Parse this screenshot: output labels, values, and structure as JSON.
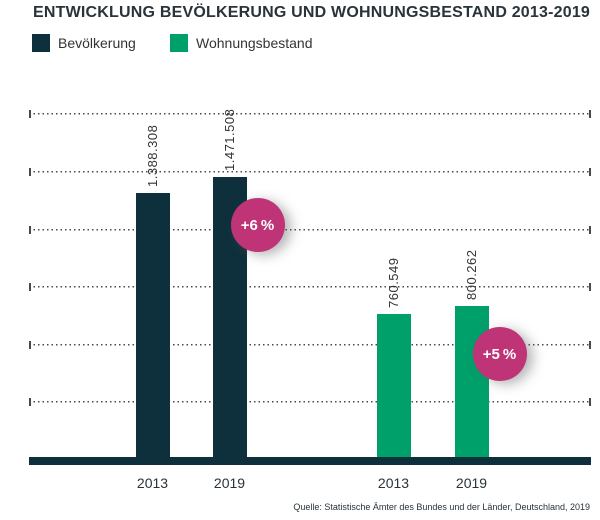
{
  "title": "ENTWICKLUNG BEVÖLKERUNG UND WOHNUNGSBESTAND 2013-2019",
  "legend": [
    {
      "label": "Bevölkerung",
      "color": "#0d303c"
    },
    {
      "label": "Wohnungsbestand",
      "color": "#00a06b"
    }
  ],
  "source": "Quelle: Statistische Ämter des Bundes und der Länder, Deutschland, 2019",
  "colors": {
    "population": "#0d303c",
    "housing": "#00a06b",
    "badge": "#bf3377",
    "axis": "#0d303c",
    "gridline": "#4a4a4a",
    "title_text": "#28333a",
    "value_text": "#333333"
  },
  "chart_data": {
    "type": "bar",
    "title": "ENTWICKLUNG BEVÖLKERUNG UND WOHNUNGSBESTAND 2013-2019",
    "xlabel": "",
    "ylabel": "",
    "ylim": [
      0,
      1875000
    ],
    "grid": "dotted-horizontal",
    "gridline_values": [
      300000,
      600000,
      900000,
      1200000,
      1500000,
      1800000
    ],
    "legend_position": "top-left",
    "categories": [
      "2013",
      "2019",
      "2013",
      "2019"
    ],
    "series": [
      {
        "name": "Bevölkerung",
        "color": "#0d303c",
        "points": [
          {
            "year": "2013",
            "value": 1388308,
            "value_label": "1.388.308"
          },
          {
            "year": "2019",
            "value": 1471508,
            "value_label": "1.471.508",
            "badge": "+6 %"
          }
        ]
      },
      {
        "name": "Wohnungsbestand",
        "color": "#00a06b",
        "points": [
          {
            "year": "2013",
            "value": 760549,
            "value_label": "760.549"
          },
          {
            "year": "2019",
            "value": 800262,
            "value_label": "800.262",
            "badge": "+5 %"
          }
        ]
      }
    ]
  }
}
